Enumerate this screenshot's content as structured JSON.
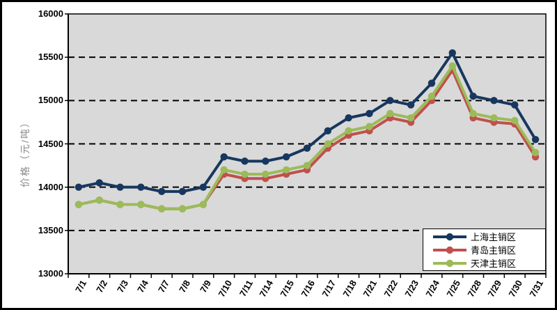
{
  "frame": {
    "background": "#ffffff",
    "border_color": "#000000"
  },
  "chart_data": {
    "type": "line",
    "title": "",
    "ylabel": "价格（元/吨）",
    "xlabel": "",
    "ylim": [
      13000,
      16000
    ],
    "ytick_step": 500,
    "yticks": [
      "13000",
      "13500",
      "14000",
      "14500",
      "15000",
      "15500",
      "16000"
    ],
    "grid": "horizontal dashed black gridlines at 13500-15500",
    "plot_bg": "#d9d9d9",
    "axis_color": "#000000",
    "ylabel_color": "#8a8a8a",
    "legend_position": "inside bottom-right",
    "categories": [
      "7/1",
      "7/2",
      "7/3",
      "7/4",
      "7/7",
      "7/8",
      "7/9",
      "7/10",
      "7/11",
      "7/14",
      "7/15",
      "7/16",
      "7/17",
      "7/18",
      "7/21",
      "7/22",
      "7/23",
      "7/24",
      "7/25",
      "7/28",
      "7/29",
      "7/30",
      "7/31"
    ],
    "series": [
      {
        "id": "shanghai",
        "name": "上海主销区",
        "color": "#17375e",
        "marker": "circle",
        "values": [
          14000,
          14050,
          14000,
          14000,
          13950,
          13950,
          14000,
          14350,
          14300,
          14300,
          14350,
          14450,
          14650,
          14800,
          14850,
          15000,
          14950,
          15200,
          15550,
          15050,
          15000,
          14950,
          14550
        ]
      },
      {
        "id": "qingdao",
        "name": "青岛主销区",
        "color": "#c0504d",
        "marker": "circle",
        "values": [
          13800,
          13850,
          13800,
          13800,
          13750,
          13750,
          13800,
          14150,
          14100,
          14100,
          14150,
          14200,
          14450,
          14600,
          14650,
          14800,
          14750,
          15000,
          15350,
          14800,
          14750,
          14730,
          14350
        ]
      },
      {
        "id": "tianjin",
        "name": "天津主销区",
        "color": "#9bbb59",
        "marker": "circle",
        "values": [
          13800,
          13850,
          13800,
          13800,
          13750,
          13750,
          13800,
          14200,
          14150,
          14150,
          14200,
          14250,
          14500,
          14650,
          14700,
          14850,
          14800,
          15050,
          15400,
          14850,
          14800,
          14770,
          14400
        ]
      }
    ]
  }
}
